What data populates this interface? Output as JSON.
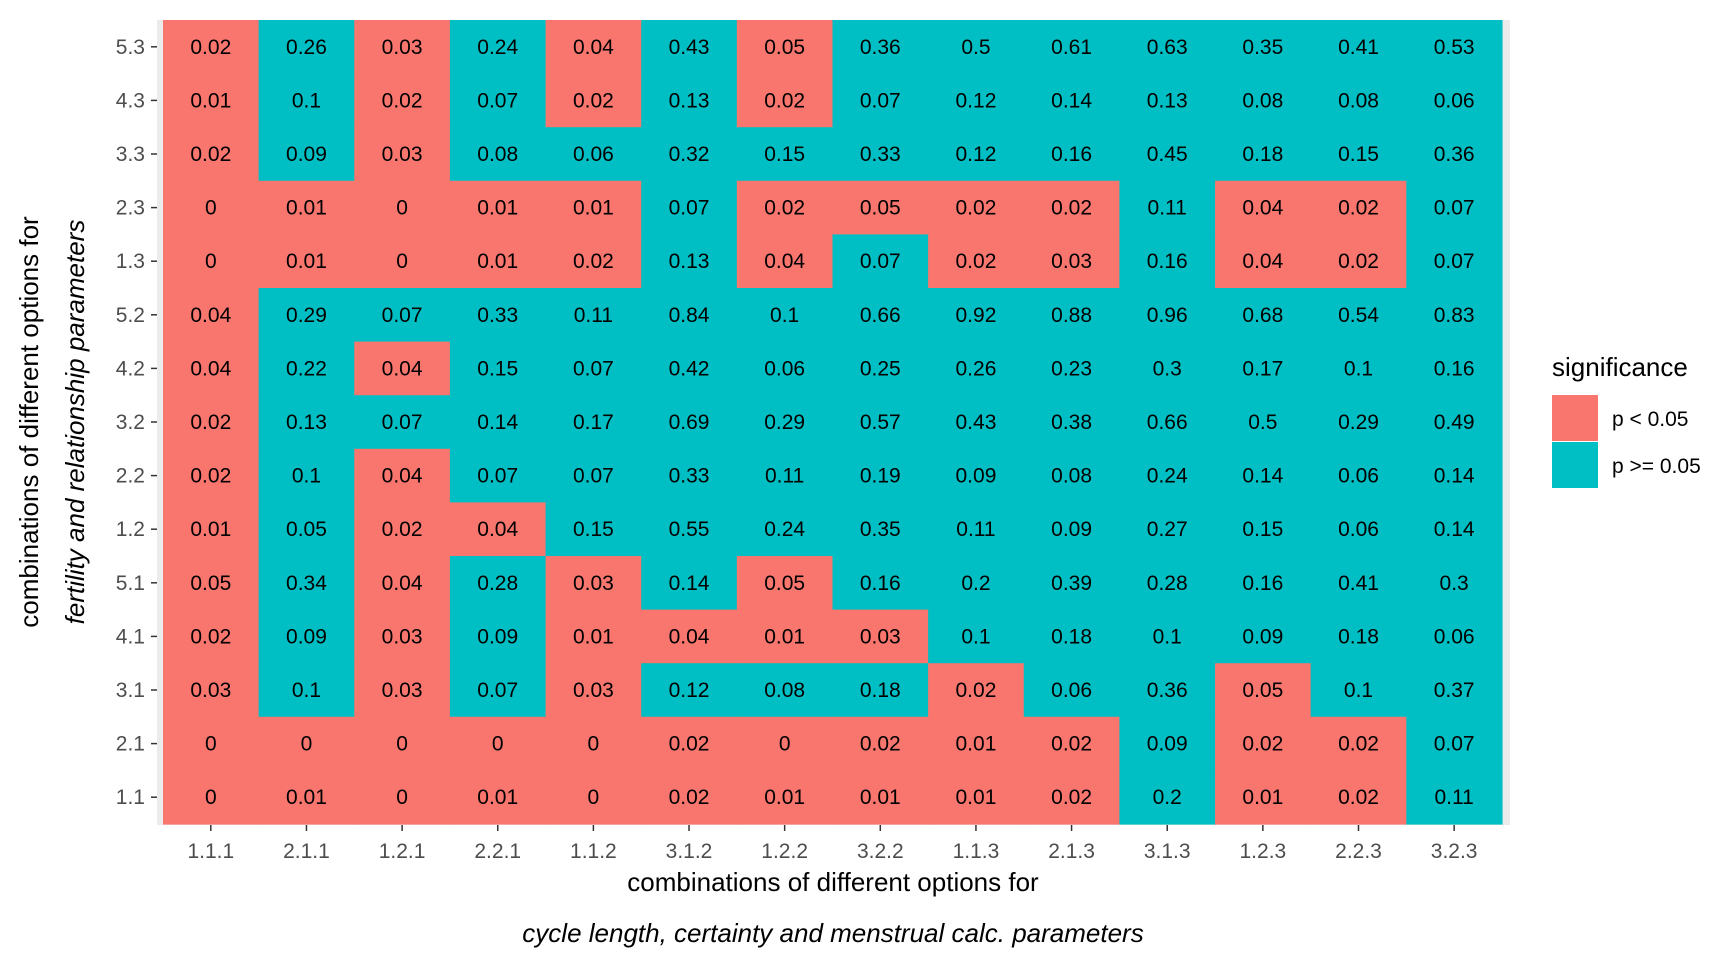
{
  "chart_data": {
    "type": "heatmap",
    "x_categories": [
      "1.1.1",
      "2.1.1",
      "1.2.1",
      "2.2.1",
      "1.1.2",
      "3.1.2",
      "1.2.2",
      "3.2.2",
      "1.1.3",
      "2.1.3",
      "3.1.3",
      "1.2.3",
      "2.2.3",
      "3.2.3"
    ],
    "y_categories": [
      "5.3",
      "4.3",
      "3.3",
      "2.3",
      "1.3",
      "5.2",
      "4.2",
      "3.2",
      "2.2",
      "1.2",
      "5.1",
      "4.1",
      "3.1",
      "2.1",
      "1.1"
    ],
    "values": [
      [
        "0.02",
        "0.26",
        "0.03",
        "0.24",
        "0.04",
        "0.43",
        "0.05",
        "0.36",
        "0.5",
        "0.61",
        "0.63",
        "0.35",
        "0.41",
        "0.53"
      ],
      [
        "0.01",
        "0.1",
        "0.02",
        "0.07",
        "0.02",
        "0.13",
        "0.02",
        "0.07",
        "0.12",
        "0.14",
        "0.13",
        "0.08",
        "0.08",
        "0.06"
      ],
      [
        "0.02",
        "0.09",
        "0.03",
        "0.08",
        "0.06",
        "0.32",
        "0.15",
        "0.33",
        "0.12",
        "0.16",
        "0.45",
        "0.18",
        "0.15",
        "0.36"
      ],
      [
        "0",
        "0.01",
        "0",
        "0.01",
        "0.01",
        "0.07",
        "0.02",
        "0.05",
        "0.02",
        "0.02",
        "0.11",
        "0.04",
        "0.02",
        "0.07"
      ],
      [
        "0",
        "0.01",
        "0",
        "0.01",
        "0.02",
        "0.13",
        "0.04",
        "0.07",
        "0.02",
        "0.03",
        "0.16",
        "0.04",
        "0.02",
        "0.07"
      ],
      [
        "0.04",
        "0.29",
        "0.07",
        "0.33",
        "0.11",
        "0.84",
        "0.1",
        "0.66",
        "0.92",
        "0.88",
        "0.96",
        "0.68",
        "0.54",
        "0.83"
      ],
      [
        "0.04",
        "0.22",
        "0.04",
        "0.15",
        "0.07",
        "0.42",
        "0.06",
        "0.25",
        "0.26",
        "0.23",
        "0.3",
        "0.17",
        "0.1",
        "0.16"
      ],
      [
        "0.02",
        "0.13",
        "0.07",
        "0.14",
        "0.17",
        "0.69",
        "0.29",
        "0.57",
        "0.43",
        "0.38",
        "0.66",
        "0.5",
        "0.29",
        "0.49"
      ],
      [
        "0.02",
        "0.1",
        "0.04",
        "0.07",
        "0.07",
        "0.33",
        "0.11",
        "0.19",
        "0.09",
        "0.08",
        "0.24",
        "0.14",
        "0.06",
        "0.14"
      ],
      [
        "0.01",
        "0.05",
        "0.02",
        "0.04",
        "0.15",
        "0.55",
        "0.24",
        "0.35",
        "0.11",
        "0.09",
        "0.27",
        "0.15",
        "0.06",
        "0.14"
      ],
      [
        "0.05",
        "0.34",
        "0.04",
        "0.28",
        "0.03",
        "0.14",
        "0.05",
        "0.16",
        "0.2",
        "0.39",
        "0.28",
        "0.16",
        "0.41",
        "0.3"
      ],
      [
        "0.02",
        "0.09",
        "0.03",
        "0.09",
        "0.01",
        "0.04",
        "0.01",
        "0.03",
        "0.1",
        "0.18",
        "0.1",
        "0.09",
        "0.18",
        "0.06"
      ],
      [
        "0.03",
        "0.1",
        "0.03",
        "0.07",
        "0.03",
        "0.12",
        "0.08",
        "0.18",
        "0.02",
        "0.06",
        "0.36",
        "0.05",
        "0.1",
        "0.37"
      ],
      [
        "0",
        "0",
        "0",
        "0",
        "0",
        "0.02",
        "0",
        "0.02",
        "0.01",
        "0.02",
        "0.09",
        "0.02",
        "0.02",
        "0.07"
      ],
      [
        "0",
        "0.01",
        "0",
        "0.01",
        "0",
        "0.02",
        "0.01",
        "0.01",
        "0.01",
        "0.02",
        "0.2",
        "0.01",
        "0.02",
        "0.11"
      ]
    ],
    "significance": [
      [
        1,
        0,
        1,
        0,
        1,
        0,
        1,
        0,
        0,
        0,
        0,
        0,
        0,
        0
      ],
      [
        1,
        0,
        1,
        0,
        1,
        0,
        1,
        0,
        0,
        0,
        0,
        0,
        0,
        0
      ],
      [
        1,
        0,
        1,
        0,
        0,
        0,
        0,
        0,
        0,
        0,
        0,
        0,
        0,
        0
      ],
      [
        1,
        1,
        1,
        1,
        1,
        0,
        1,
        1,
        1,
        1,
        0,
        1,
        1,
        0
      ],
      [
        1,
        1,
        1,
        1,
        1,
        0,
        1,
        0,
        1,
        1,
        0,
        1,
        1,
        0
      ],
      [
        1,
        0,
        0,
        0,
        0,
        0,
        0,
        0,
        0,
        0,
        0,
        0,
        0,
        0
      ],
      [
        1,
        0,
        1,
        0,
        0,
        0,
        0,
        0,
        0,
        0,
        0,
        0,
        0,
        0
      ],
      [
        1,
        0,
        0,
        0,
        0,
        0,
        0,
        0,
        0,
        0,
        0,
        0,
        0,
        0
      ],
      [
        1,
        0,
        1,
        0,
        0,
        0,
        0,
        0,
        0,
        0,
        0,
        0,
        0,
        0
      ],
      [
        1,
        0,
        1,
        1,
        0,
        0,
        0,
        0,
        0,
        0,
        0,
        0,
        0,
        0
      ],
      [
        1,
        0,
        1,
        0,
        1,
        0,
        1,
        0,
        0,
        0,
        0,
        0,
        0,
        0
      ],
      [
        1,
        0,
        1,
        0,
        1,
        1,
        1,
        1,
        0,
        0,
        0,
        0,
        0,
        0
      ],
      [
        1,
        0,
        1,
        0,
        1,
        0,
        0,
        0,
        1,
        0,
        0,
        1,
        0,
        0
      ],
      [
        1,
        1,
        1,
        1,
        1,
        1,
        1,
        1,
        1,
        1,
        0,
        1,
        1,
        0
      ],
      [
        1,
        1,
        1,
        1,
        1,
        1,
        1,
        1,
        1,
        1,
        0,
        1,
        1,
        0
      ]
    ],
    "xlabel_line1": "combinations of different options for",
    "xlabel_line2": "cycle length, certainty and menstrual calc. parameters",
    "ylabel_line1": "combinations of different options for",
    "ylabel_line2": "fertility and relationship parameters",
    "legend": {
      "title": "significance",
      "placement": "right",
      "entries": [
        {
          "label": "p < 0.05",
          "color": "#F8766D"
        },
        {
          "label": "p >= 0.05",
          "color": "#00BFC4"
        }
      ]
    },
    "colors": {
      "significant": "#F8766D",
      "not_significant": "#00BFC4",
      "panel_background": "#EBEBEB"
    }
  }
}
